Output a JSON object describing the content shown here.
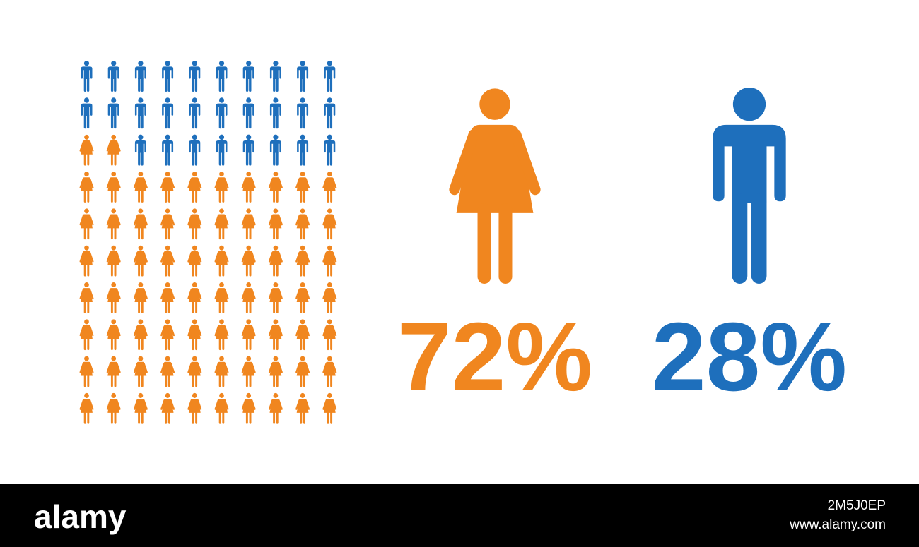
{
  "chart_data": {
    "type": "pictogram",
    "series": [
      {
        "icon": "female",
        "color": "#f0861f",
        "values": 72,
        "value_labels": "72%"
      },
      {
        "icon": "male",
        "color": "#1e6fbc",
        "values": 28,
        "value_labels": "28%"
      }
    ]
  },
  "footer": {
    "logo": "alamy",
    "image_id": "2M5J0EP",
    "url": "www.alamy.com"
  }
}
